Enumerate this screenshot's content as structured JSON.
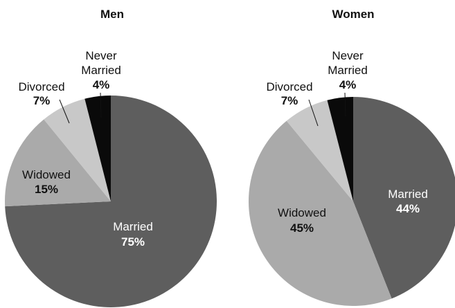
{
  "chart_data": [
    {
      "type": "pie",
      "title": "Men",
      "slices": [
        {
          "label": "Married",
          "value": 75,
          "display": "75%",
          "color": "#5e5e5e"
        },
        {
          "label": "Widowed",
          "value": 15,
          "display": "15%",
          "color": "#aaaaaa"
        },
        {
          "label": "Divorced",
          "value": 7,
          "display": "7%",
          "color": "#c8c8c8"
        },
        {
          "label": "Never Married",
          "label_lines": [
            "Never",
            "Married"
          ],
          "value": 4,
          "display": "4%",
          "color": "#0a0a0a"
        }
      ]
    },
    {
      "type": "pie",
      "title": "Women",
      "slices": [
        {
          "label": "Married",
          "value": 44,
          "display": "44%",
          "color": "#5e5e5e"
        },
        {
          "label": "Widowed",
          "value": 45,
          "display": "45%",
          "color": "#aaaaaa"
        },
        {
          "label": "Divorced",
          "value": 7,
          "display": "7%",
          "color": "#c8c8c8"
        },
        {
          "label": "Never Married",
          "label_lines": [
            "Never",
            "Married"
          ],
          "value": 4,
          "display": "4%",
          "color": "#0a0a0a"
        }
      ]
    }
  ]
}
